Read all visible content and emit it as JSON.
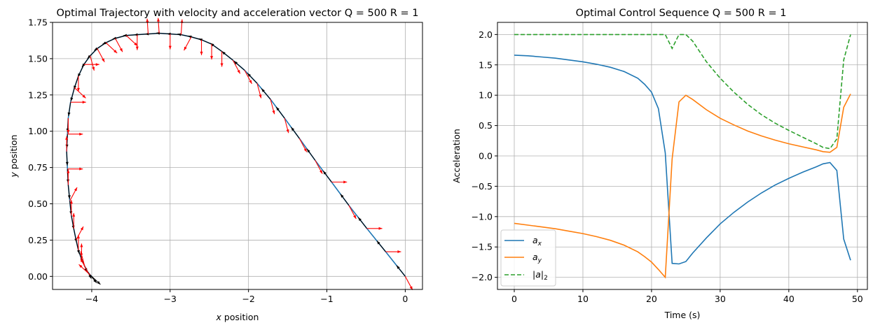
{
  "chart_data": [
    {
      "type": "line",
      "title": "Optimal Trajectory with velocity and acceleration vector  Q = 500 R = 1",
      "xlabel_prefix": "x",
      "xlabel_suffix": " position",
      "ylabel_prefix": "y",
      "ylabel_suffix": " position",
      "xlim": [
        -4.5,
        0.22
      ],
      "ylim": [
        -0.09,
        1.75
      ],
      "xticks": [
        -4,
        -3,
        -2,
        -1,
        0
      ],
      "xtick_labels": [
        "−4",
        "−3",
        "−2",
        "−1",
        "0"
      ],
      "yticks": [
        0.0,
        0.25,
        0.5,
        0.75,
        1.0,
        1.25,
        1.5,
        1.75
      ],
      "ytick_labels": [
        "0.00",
        "0.25",
        "0.50",
        "0.75",
        "1.00",
        "1.25",
        "1.50",
        "1.75"
      ],
      "grid": true,
      "colors": {
        "path": "#1f77b4",
        "velocity": "#000000",
        "acceleration": "#ff0000"
      },
      "x": [
        0.0,
        -0.25,
        -0.49,
        -0.72,
        -0.94,
        -1.15,
        -1.35,
        -1.54,
        -1.72,
        -1.89,
        -2.05,
        -2.2,
        -2.34,
        -2.47,
        -2.6,
        -2.73,
        -2.86,
        -3.0,
        -3.14,
        -3.28,
        -3.42,
        -3.56,
        -3.7,
        -3.82,
        -3.93,
        -4.02,
        -4.1,
        -4.17,
        -4.22,
        -4.27,
        -4.3,
        -4.31,
        -4.32,
        -4.31,
        -4.3,
        -4.28,
        -4.26,
        -4.23,
        -4.2,
        -4.17,
        -4.13,
        -4.09,
        -4.05,
        -4.02,
        -4.0
      ],
      "y": [
        0.0,
        0.17,
        0.33,
        0.49,
        0.65,
        0.8,
        0.95,
        1.09,
        1.22,
        1.33,
        1.42,
        1.49,
        1.55,
        1.6,
        1.63,
        1.65,
        1.665,
        1.67,
        1.675,
        1.67,
        1.665,
        1.66,
        1.64,
        1.61,
        1.57,
        1.52,
        1.46,
        1.38,
        1.3,
        1.2,
        1.09,
        0.98,
        0.86,
        0.74,
        0.63,
        0.52,
        0.42,
        0.33,
        0.25,
        0.18,
        0.12,
        0.07,
        0.03,
        0.01,
        0.0
      ]
    },
    {
      "type": "line",
      "title": "Optimal Control Sequence  Q = 500 R = 1",
      "xlabel": "Time (s)",
      "ylabel": "Acceleration",
      "xlim": [
        -2.45,
        51.45
      ],
      "ylim": [
        -2.2,
        2.2
      ],
      "xticks": [
        0,
        10,
        20,
        30,
        40,
        50
      ],
      "xtick_labels": [
        "0",
        "10",
        "20",
        "30",
        "40",
        "50"
      ],
      "yticks": [
        -2.0,
        -1.5,
        -1.0,
        -0.5,
        0.0,
        0.5,
        1.0,
        1.5,
        2.0
      ],
      "ytick_labels": [
        "−2.0",
        "−1.5",
        "−1.0",
        "−0.5",
        "0.0",
        "0.5",
        "1.0",
        "1.5",
        "2.0"
      ],
      "grid": true,
      "legend_position": "lower-left",
      "series": [
        {
          "name_main": "a",
          "name_sub": "x",
          "color": "#1f77b4",
          "dash": "solid",
          "x": [
            0,
            2,
            4,
            6,
            8,
            10,
            12,
            14,
            16,
            18,
            19,
            20,
            21,
            22,
            23,
            24,
            25,
            26,
            28,
            30,
            32,
            34,
            36,
            38,
            40,
            42,
            44,
            45,
            46,
            47,
            48,
            49
          ],
          "y": [
            1.66,
            1.65,
            1.63,
            1.61,
            1.58,
            1.55,
            1.51,
            1.46,
            1.39,
            1.28,
            1.18,
            1.05,
            0.78,
            0.05,
            -1.77,
            -1.78,
            -1.74,
            -1.6,
            -1.35,
            -1.12,
            -0.93,
            -0.76,
            -0.61,
            -0.48,
            -0.37,
            -0.27,
            -0.18,
            -0.13,
            -0.11,
            -0.24,
            -1.37,
            -1.72
          ]
        },
        {
          "name_main": "a",
          "name_sub": "y",
          "color": "#ff7f0e",
          "dash": "solid",
          "x": [
            0,
            2,
            4,
            6,
            8,
            10,
            12,
            14,
            16,
            18,
            19,
            20,
            21,
            22,
            23,
            24,
            25,
            26,
            28,
            30,
            32,
            34,
            36,
            38,
            40,
            42,
            44,
            45,
            46,
            47,
            48,
            49
          ],
          "y": [
            -1.11,
            -1.14,
            -1.17,
            -1.2,
            -1.24,
            -1.28,
            -1.33,
            -1.39,
            -1.47,
            -1.58,
            -1.66,
            -1.75,
            -1.87,
            -2.0,
            -0.05,
            0.89,
            1.0,
            0.93,
            0.76,
            0.62,
            0.51,
            0.41,
            0.33,
            0.26,
            0.2,
            0.15,
            0.1,
            0.07,
            0.06,
            0.14,
            0.8,
            1.02
          ]
        },
        {
          "name_main": "|a|",
          "name_sub": "2",
          "color": "#2ca02c",
          "dash": "dashed",
          "x": [
            0,
            5,
            10,
            15,
            20,
            21,
            22,
            23,
            24,
            25,
            26,
            28,
            30,
            32,
            34,
            36,
            38,
            40,
            42,
            44,
            45,
            46,
            47,
            48,
            49
          ],
          "y": [
            2.0,
            2.0,
            2.0,
            2.0,
            2.0,
            2.0,
            2.0,
            1.77,
            2.0,
            2.0,
            1.89,
            1.55,
            1.28,
            1.05,
            0.85,
            0.68,
            0.54,
            0.42,
            0.31,
            0.2,
            0.14,
            0.12,
            0.28,
            1.58,
            2.0
          ]
        }
      ]
    }
  ]
}
